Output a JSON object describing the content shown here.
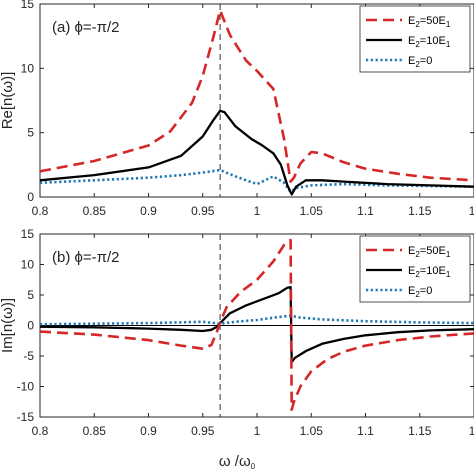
{
  "chart_data": [
    {
      "type": "line",
      "panel_label": "(a)",
      "annotation": "ϕ=-π/2",
      "xlabel": "",
      "ylabel": "Re[n(ω)]",
      "xlim": [
        0.8,
        1.2
      ],
      "ylim": [
        0,
        15
      ],
      "x_ticks": [
        "0.8",
        "0.85",
        "0.9",
        "0.95",
        "1",
        "1.05",
        "1.1",
        "1.15",
        "1"
      ],
      "y_ticks": [
        "0",
        "5",
        "10",
        "15"
      ],
      "vline_x": 0.966,
      "legend_position": "top-right",
      "series": [
        {
          "name": "E2=50E1",
          "color": "#d62728",
          "style": "dashed",
          "x": [
            0.8,
            0.85,
            0.9,
            0.92,
            0.94,
            0.95,
            0.96,
            0.966,
            0.975,
            0.99,
            1.0,
            1.015,
            1.025,
            1.031,
            1.034,
            1.04,
            1.05,
            1.06,
            1.08,
            1.1,
            1.13,
            1.16,
            1.2
          ],
          "y": [
            2.0,
            2.8,
            4.0,
            5.1,
            7.3,
            9.4,
            12.5,
            14.5,
            12.6,
            10.6,
            9.8,
            8.4,
            4.5,
            1.2,
            1.5,
            2.6,
            3.5,
            3.4,
            2.7,
            2.2,
            1.8,
            1.5,
            1.3
          ]
        },
        {
          "name": "E2=10E1",
          "color": "#000000",
          "style": "solid",
          "x": [
            0.8,
            0.85,
            0.9,
            0.93,
            0.95,
            0.96,
            0.966,
            0.97,
            0.98,
            0.995,
            1.005,
            1.015,
            1.022,
            1.028,
            1.032,
            1.036,
            1.045,
            1.06,
            1.08,
            1.12,
            1.16,
            1.2
          ],
          "y": [
            1.3,
            1.7,
            2.3,
            3.2,
            4.7,
            6.0,
            6.7,
            6.6,
            5.5,
            4.5,
            4.0,
            3.4,
            2.5,
            0.9,
            0.2,
            0.8,
            1.3,
            1.3,
            1.2,
            1.0,
            0.9,
            0.8
          ]
        },
        {
          "name": "E2=0",
          "color": "#1f77b4",
          "style": "dotted",
          "x": [
            0.8,
            0.85,
            0.9,
            0.93,
            0.95,
            0.966,
            0.98,
            1.0,
            1.015,
            1.025,
            1.031,
            1.036,
            1.05,
            1.08,
            1.12,
            1.2
          ],
          "y": [
            1.1,
            1.3,
            1.5,
            1.7,
            1.9,
            2.1,
            1.6,
            1.0,
            1.6,
            1.1,
            0.4,
            0.7,
            0.9,
            1.0,
            0.9,
            0.8
          ]
        }
      ]
    },
    {
      "type": "line",
      "panel_label": "(b)",
      "annotation": "ϕ=-π/2",
      "xlabel": "ω /ω0",
      "ylabel": "Im[n(ω)]",
      "xlim": [
        0.8,
        1.2
      ],
      "ylim": [
        -15,
        15
      ],
      "x_ticks": [
        "0.8",
        "0.85",
        "0.9",
        "0.95",
        "1",
        "1.05",
        "1.1",
        "1.15",
        "1"
      ],
      "y_ticks": [
        "-15",
        "-10",
        "-5",
        "0",
        "5",
        "10",
        "15"
      ],
      "vline_x": 0.966,
      "legend_position": "top-right",
      "series": [
        {
          "name": "E2=50E1",
          "color": "#d62728",
          "style": "dashed",
          "x": [
            0.8,
            0.85,
            0.9,
            0.93,
            0.95,
            0.958,
            0.963,
            0.966,
            0.972,
            0.985,
            1.0,
            1.015,
            1.025,
            1.031,
            1.032,
            1.034,
            1.04,
            1.05,
            1.065,
            1.08,
            1.1,
            1.13,
            1.16,
            1.2
          ],
          "y": [
            -1.0,
            -1.5,
            -2.4,
            -3.3,
            -3.8,
            -3.2,
            -1.0,
            0.5,
            3.0,
            5.5,
            7.5,
            10.5,
            13.2,
            14.0,
            -13.8,
            -12.5,
            -10.0,
            -7.5,
            -5.5,
            -4.3,
            -3.3,
            -2.4,
            -1.8,
            -1.3
          ]
        },
        {
          "name": "E2=10E1",
          "color": "#000000",
          "style": "solid",
          "x": [
            0.8,
            0.85,
            0.9,
            0.93,
            0.95,
            0.958,
            0.963,
            0.966,
            0.975,
            0.99,
            1.005,
            1.02,
            1.028,
            1.031,
            1.032,
            1.035,
            1.045,
            1.06,
            1.08,
            1.1,
            1.13,
            1.16,
            1.2
          ],
          "y": [
            -0.2,
            -0.3,
            -0.5,
            -0.7,
            -0.9,
            -0.7,
            -0.2,
            0.4,
            2.0,
            3.3,
            4.3,
            5.3,
            6.2,
            6.3,
            -6.0,
            -5.3,
            -4.2,
            -3.0,
            -2.2,
            -1.6,
            -1.1,
            -0.8,
            -0.6
          ]
        },
        {
          "name": "E2=0",
          "color": "#1f77b4",
          "style": "dotted",
          "x": [
            0.8,
            0.85,
            0.9,
            0.95,
            0.966,
            0.98,
            1.0,
            1.02,
            1.031,
            1.04,
            1.06,
            1.1,
            1.15,
            1.2
          ],
          "y": [
            0.2,
            0.3,
            0.4,
            0.6,
            0.3,
            0.6,
            0.9,
            1.4,
            1.6,
            1.3,
            1.0,
            0.7,
            0.5,
            0.4
          ]
        }
      ]
    }
  ]
}
